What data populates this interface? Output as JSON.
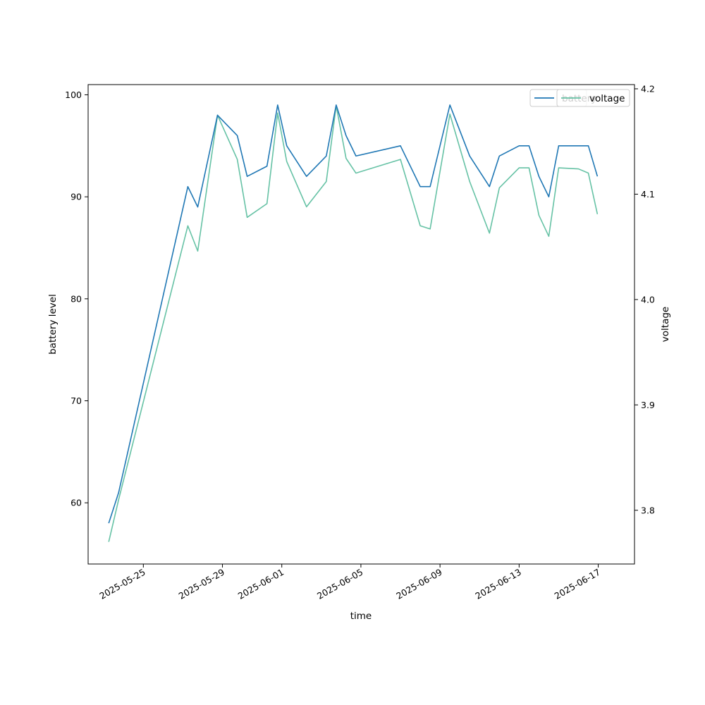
{
  "chart_data": {
    "type": "line",
    "xlabel": "time",
    "ylabel": "battery level",
    "y2label": "voltage",
    "grid": false,
    "legend_placement": "top-right",
    "xlim": [
      "2025-05-22T05:00",
      "2025-06-18T20:00"
    ],
    "ylim": [
      54.0,
      101.0
    ],
    "y2lim": [
      3.749,
      4.204
    ],
    "x_ticks": [
      "2025-05-25",
      "2025-05-29",
      "2025-06-01",
      "2025-06-05",
      "2025-06-09",
      "2025-06-13",
      "2025-06-17"
    ],
    "y_ticks": [
      60,
      70,
      80,
      90,
      100
    ],
    "y2_ticks": [
      "3.8",
      "3.9",
      "4.0",
      "4.1",
      "4.2"
    ],
    "series": [
      {
        "name": "battery",
        "axis": "left",
        "color": "#1f77b4",
        "points": [
          {
            "x": "2025-05-23T06:00",
            "y": 58
          },
          {
            "x": "2025-05-23T18:00",
            "y": 61
          },
          {
            "x": "2025-05-27T06:00",
            "y": 91
          },
          {
            "x": "2025-05-27T18:00",
            "y": 89
          },
          {
            "x": "2025-05-28T18:00",
            "y": 98
          },
          {
            "x": "2025-05-29T18:00",
            "y": 96
          },
          {
            "x": "2025-05-30T06:00",
            "y": 92
          },
          {
            "x": "2025-05-31T06:00",
            "y": 93
          },
          {
            "x": "2025-05-31T19:00",
            "y": 99
          },
          {
            "x": "2025-06-01T06:00",
            "y": 95
          },
          {
            "x": "2025-06-02T06:00",
            "y": 92
          },
          {
            "x": "2025-06-03T06:00",
            "y": 94
          },
          {
            "x": "2025-06-03T18:00",
            "y": 99
          },
          {
            "x": "2025-06-04T06:00",
            "y": 96
          },
          {
            "x": "2025-06-04T18:00",
            "y": 94
          },
          {
            "x": "2025-06-07T00:00",
            "y": 95
          },
          {
            "x": "2025-06-08T00:00",
            "y": 91
          },
          {
            "x": "2025-06-08T12:00",
            "y": 91
          },
          {
            "x": "2025-06-09T12:00",
            "y": 99
          },
          {
            "x": "2025-06-10T12:00",
            "y": 94
          },
          {
            "x": "2025-06-11T12:00",
            "y": 91
          },
          {
            "x": "2025-06-12T00:00",
            "y": 94
          },
          {
            "x": "2025-06-13T00:00",
            "y": 95
          },
          {
            "x": "2025-06-13T12:00",
            "y": 95
          },
          {
            "x": "2025-06-14T00:00",
            "y": 92
          },
          {
            "x": "2025-06-14T12:00",
            "y": 90
          },
          {
            "x": "2025-06-15T00:00",
            "y": 95
          },
          {
            "x": "2025-06-16T12:00",
            "y": 95
          },
          {
            "x": "2025-06-16T23:00",
            "y": 92
          }
        ]
      },
      {
        "name": "voltage",
        "axis": "right",
        "color": "#66c2a5",
        "points": [
          {
            "x": "2025-05-23T06:00",
            "y": 3.77
          },
          {
            "x": "2025-05-23T18:00",
            "y": 3.81
          },
          {
            "x": "2025-05-27T06:00",
            "y": 4.07
          },
          {
            "x": "2025-05-27T18:00",
            "y": 4.046
          },
          {
            "x": "2025-05-28T18:00",
            "y": 4.175
          },
          {
            "x": "2025-05-29T18:00",
            "y": 4.133
          },
          {
            "x": "2025-05-30T06:00",
            "y": 4.078
          },
          {
            "x": "2025-05-31T06:00",
            "y": 4.091
          },
          {
            "x": "2025-05-31T19:00",
            "y": 4.177
          },
          {
            "x": "2025-06-01T06:00",
            "y": 4.131
          },
          {
            "x": "2025-06-02T06:00",
            "y": 4.088
          },
          {
            "x": "2025-06-03T06:00",
            "y": 4.112
          },
          {
            "x": "2025-06-03T18:00",
            "y": 4.184
          },
          {
            "x": "2025-06-04T06:00",
            "y": 4.134
          },
          {
            "x": "2025-06-04T18:00",
            "y": 4.12
          },
          {
            "x": "2025-06-07T00:00",
            "y": 4.133
          },
          {
            "x": "2025-06-08T00:00",
            "y": 4.07
          },
          {
            "x": "2025-06-08T12:00",
            "y": 4.067
          },
          {
            "x": "2025-06-09T12:00",
            "y": 4.176
          },
          {
            "x": "2025-06-10T12:00",
            "y": 4.112
          },
          {
            "x": "2025-06-11T12:00",
            "y": 4.063
          },
          {
            "x": "2025-06-12T00:00",
            "y": 4.106
          },
          {
            "x": "2025-06-13T00:00",
            "y": 4.125
          },
          {
            "x": "2025-06-13T12:00",
            "y": 4.125
          },
          {
            "x": "2025-06-14T00:00",
            "y": 4.08
          },
          {
            "x": "2025-06-14T12:00",
            "y": 4.06
          },
          {
            "x": "2025-06-15T00:00",
            "y": 4.125
          },
          {
            "x": "2025-06-16T00:00",
            "y": 4.124
          },
          {
            "x": "2025-06-16T12:00",
            "y": 4.12
          },
          {
            "x": "2025-06-16T23:00",
            "y": 4.081
          }
        ]
      }
    ]
  }
}
